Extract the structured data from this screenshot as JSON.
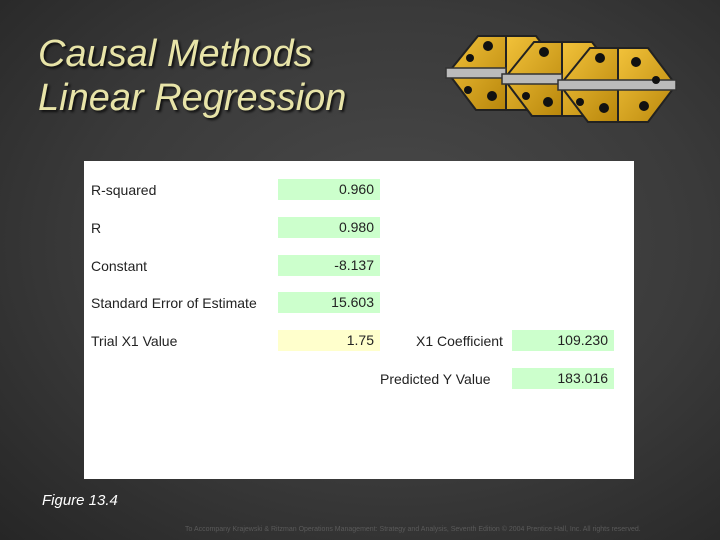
{
  "title": {
    "line1": "Causal Methods",
    "line2": "Linear Regression"
  },
  "colors": {
    "title": "#e8e4a8",
    "hinge": "#d4a017",
    "output_cell": "#ccffcc",
    "input_cell": "#ffffcc"
  },
  "icons": [
    "hinge-icon",
    "hinge-icon",
    "hinge-icon"
  ],
  "stats": {
    "r_squared": {
      "label": "R-squared",
      "value": "0.960"
    },
    "r": {
      "label": "R",
      "value": "0.980"
    },
    "constant": {
      "label": "Constant",
      "value": "-8.137"
    },
    "std_error": {
      "label": "Standard Error of Estimate",
      "value": "15.603"
    },
    "trial_x1": {
      "label": "Trial X1 Value",
      "value": "1.75"
    },
    "x1_coefficient": {
      "label": "X1 Coefficient",
      "value": "109.230"
    },
    "predicted_y": {
      "label": "Predicted Y Value",
      "value": "183.016"
    }
  },
  "figure_caption": "Figure 13.4",
  "footer": "To Accompany Krajewski & Ritzman Operations Management: Strategy and Analysis, Seventh Edition © 2004 Prentice Hall, Inc. All rights reserved."
}
